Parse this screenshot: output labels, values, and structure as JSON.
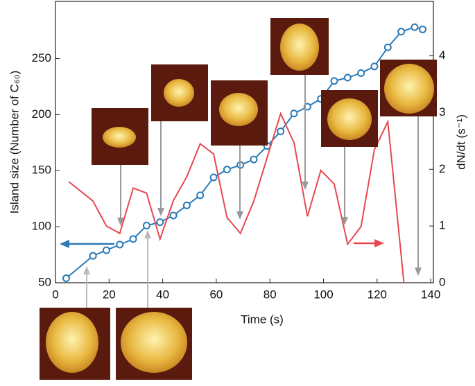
{
  "chart_data": {
    "type": "line",
    "xlabel": "Time (s)",
    "ylabel": "Island size (Number of C₆₀)",
    "y2label": "dN/dt (s⁻¹)",
    "xlim": [
      0,
      141
    ],
    "xticks": [
      0,
      20,
      40,
      60,
      80,
      100,
      120,
      140
    ],
    "ylim": [
      50,
      301
    ],
    "yticks": [
      50,
      100,
      150,
      200,
      250
    ],
    "y2lim": [
      0,
      4.96
    ],
    "y2ticks": [
      0,
      1,
      2,
      3,
      4
    ],
    "series": [
      {
        "name": "Island size",
        "color": "#2a7ab8",
        "markers": true,
        "x": [
          4,
          14,
          19,
          24,
          29,
          34,
          39,
          44,
          49,
          54,
          59,
          64,
          69,
          74,
          79,
          84,
          89,
          94,
          99,
          104,
          109,
          114,
          119,
          124,
          129,
          134,
          137
        ],
        "values": [
          54,
          74,
          79,
          84,
          89,
          101,
          104,
          110,
          119,
          128,
          144,
          151,
          155,
          160,
          172,
          185,
          201,
          207,
          214,
          230,
          233,
          237,
          243,
          260,
          274,
          278,
          276
        ]
      },
      {
        "name": "dN/dt",
        "color": "#e8474f",
        "axis": "y2",
        "markers": false,
        "x": [
          5,
          14,
          19,
          24,
          29,
          34,
          39,
          44,
          49,
          54,
          59,
          64,
          69,
          74,
          79,
          84,
          89,
          94,
          99,
          104,
          109,
          114,
          119,
          124,
          130
        ],
        "values": [
          1.78,
          1.44,
          1.0,
          0.87,
          1.67,
          1.58,
          0.77,
          1.45,
          1.87,
          2.45,
          2.27,
          1.15,
          0.87,
          1.44,
          2.21,
          2.98,
          2.47,
          1.17,
          1.98,
          1.74,
          0.68,
          0.99,
          2.35,
          2.84,
          0.0
        ]
      }
    ]
  }
}
